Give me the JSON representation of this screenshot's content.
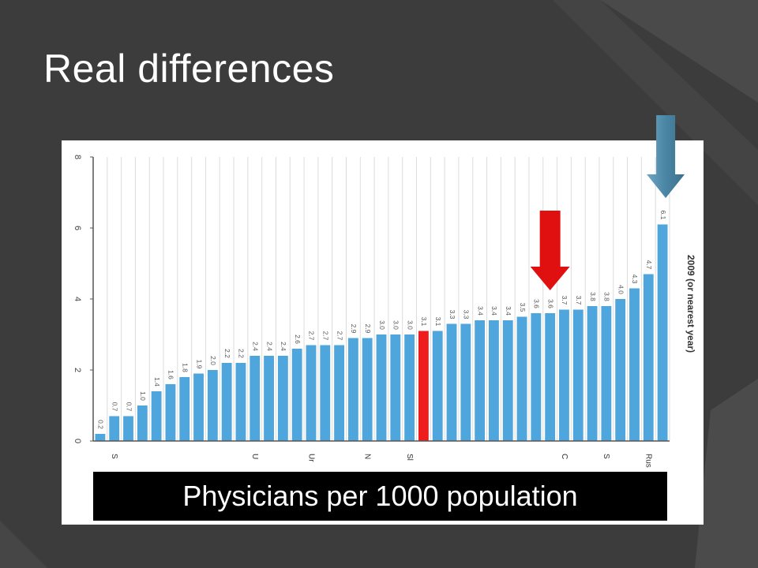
{
  "slide": {
    "title": "Real differences",
    "caption": "Physicians per 1000 population"
  },
  "colors": {
    "background": "#3f3f3f",
    "bar": "#4ea6dc",
    "highlight_bar": "#ee1c1c",
    "red_arrow": "#e01010",
    "blue_arrow": "#4a86a4"
  },
  "chart_data": {
    "type": "bar",
    "orientation": "vertical",
    "series_label": "2009 (or nearest year)",
    "values": [
      0.2,
      0.7,
      0.7,
      1.0,
      1.4,
      1.6,
      1.8,
      1.9,
      2.0,
      2.2,
      2.2,
      2.4,
      2.4,
      2.4,
      2.6,
      2.7,
      2.7,
      2.7,
      2.9,
      2.9,
      3.0,
      3.0,
      3.0,
      3.1,
      3.1,
      3.3,
      3.3,
      3.4,
      3.4,
      3.4,
      3.5,
      3.6,
      3.6,
      3.7,
      3.7,
      3.8,
      3.8,
      4.0,
      4.3,
      4.7,
      6.1
    ],
    "value_labels": [
      "0.2",
      "0.7",
      "0.7",
      "1.0",
      "1.4",
      "1.6",
      "1.8",
      "1.9",
      "2.0",
      "2.2",
      "2.2",
      "2.4",
      "2.4",
      "2.4",
      "2.6",
      "2.7",
      "2.7",
      "2.7",
      "2.9",
      "2.9",
      "3.0",
      "3.0",
      "3.0",
      "3.1",
      "3.1",
      "3.3",
      "3.3",
      "3.4",
      "3.4",
      "3.4",
      "3.5",
      "3.6",
      "3.6",
      "3.7",
      "3.7",
      "3.8",
      "3.8",
      "4.0",
      "4.3",
      "4.7",
      "6.1"
    ],
    "highlight_index": 23,
    "red_arrow_index": 32,
    "blue_arrow_index": 40,
    "ylim": [
      0,
      8
    ],
    "yticks": [
      "0",
      "2",
      "4",
      "6",
      "8"
    ],
    "ytick_values": [
      0,
      2,
      4,
      6,
      8
    ],
    "grid": true,
    "partial_category_labels": [
      "S",
      "U",
      "Ur",
      "N",
      "Sl",
      "C",
      "S",
      "Rus"
    ]
  }
}
